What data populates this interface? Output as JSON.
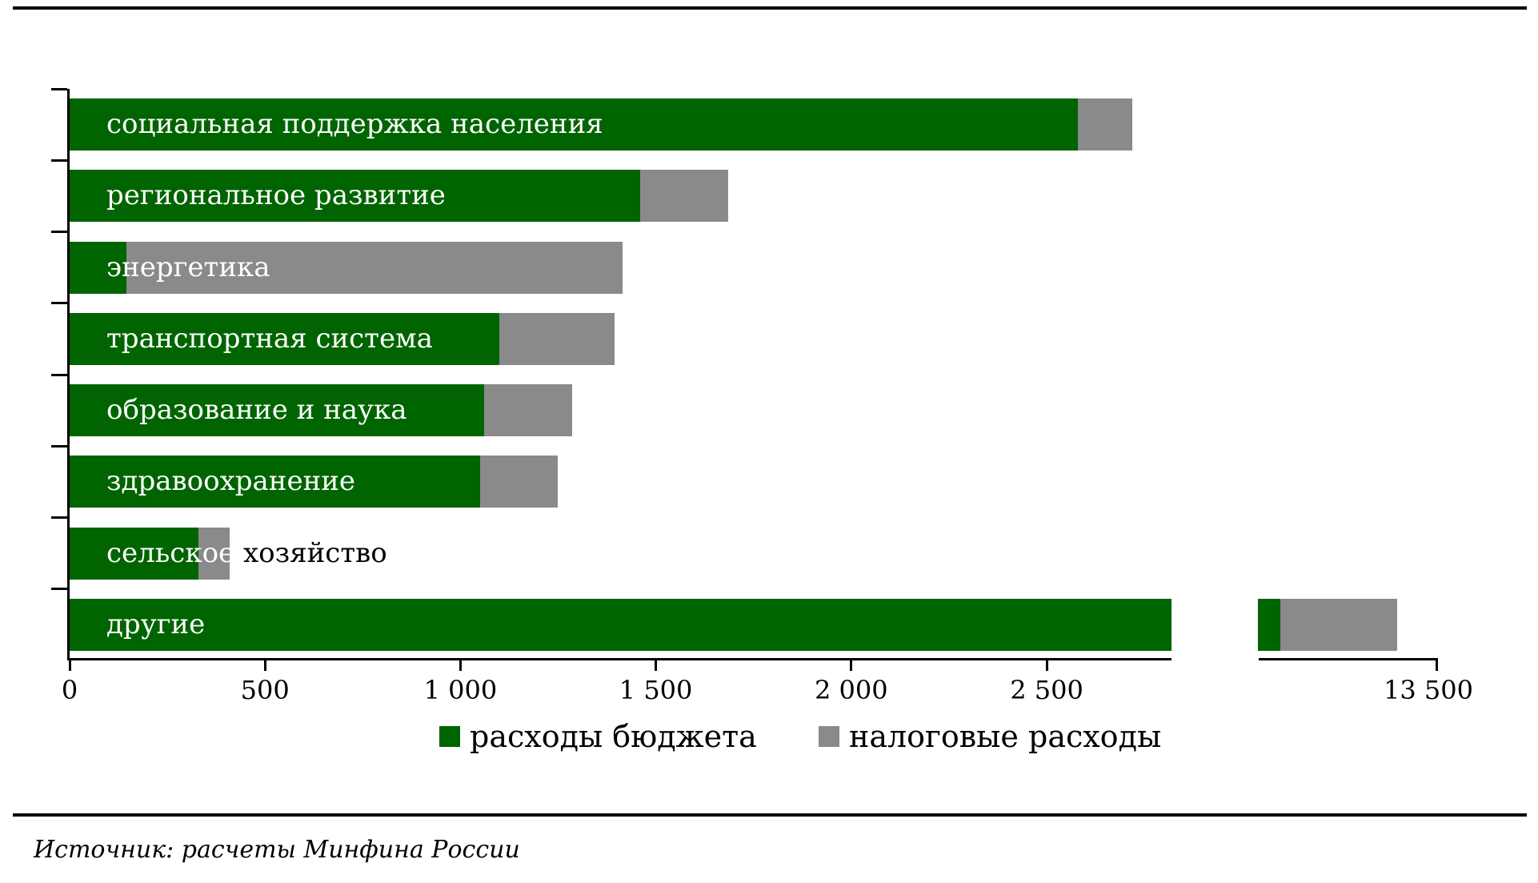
{
  "page": {
    "source_note": "Источник: расчеты Минфина России"
  },
  "colors": {
    "budget_green": "#006400",
    "tax_gray": "#8a8a8a",
    "axis_black": "#000000",
    "bar_label_white": "#ffffff"
  },
  "legend": {
    "items": [
      {
        "label": "расходы бюджета",
        "color": "#006400"
      },
      {
        "label": "налоговые расходы",
        "color": "#8a8a8a"
      }
    ]
  },
  "chart_data": {
    "type": "bar",
    "orientation": "horizontal",
    "stacked": true,
    "title": "",
    "xlabel": "",
    "ylabel": "",
    "grid": false,
    "legend_position": "bottom",
    "xlim": [
      0,
      13500
    ],
    "categories": [
      {
        "label": "социальная поддержка населения"
      },
      {
        "label": "региональное развитие"
      },
      {
        "label": "энергетика"
      },
      {
        "label": "транспортная система"
      },
      {
        "label": "образование и наука"
      },
      {
        "label": "здравоохранение"
      },
      {
        "label": "сельское хозяйство",
        "black_part": "хозяйство"
      },
      {
        "label": "другие",
        "overflow": true
      }
    ],
    "series": [
      {
        "name": "расходы бюджета",
        "color": "#006400",
        "values": [
          2580,
          1460,
          145,
          1100,
          1060,
          1050,
          330,
          13100
        ]
      },
      {
        "name": "налоговые расходы",
        "color": "#8a8a8a",
        "values": [
          140,
          225,
          1270,
          295,
          225,
          200,
          80,
          300
        ]
      }
    ],
    "x_ticks": [
      {
        "value": 0,
        "label": "0"
      },
      {
        "value": 500,
        "label": "500"
      },
      {
        "value": 1000,
        "label": "1 000"
      },
      {
        "value": 1500,
        "label": "1 500"
      },
      {
        "value": 2000,
        "label": "2 000"
      },
      {
        "value": 2500,
        "label": "2 500"
      }
    ],
    "axis_break": {
      "resume_max": 13500,
      "resume_label": "13 500"
    }
  }
}
